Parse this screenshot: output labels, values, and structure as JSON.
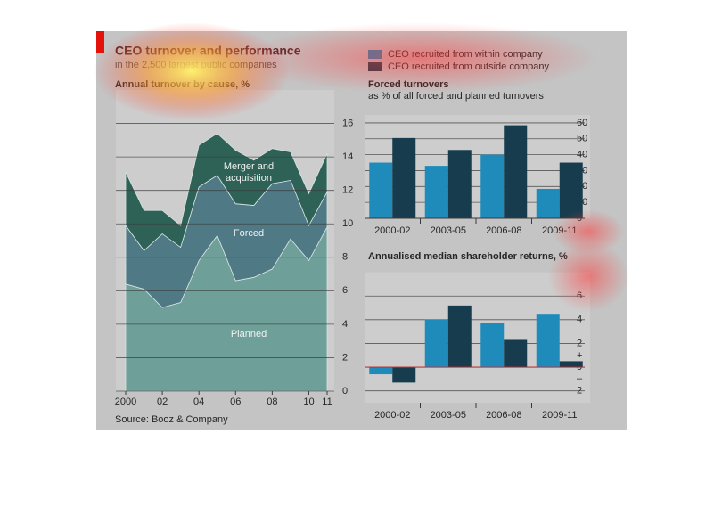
{
  "title": "CEO turnover and performance",
  "subtitle": "in the 2,500 largest public companies",
  "source": "Source: Booz & Company",
  "chart_data": [
    {
      "type": "area",
      "stacked": true,
      "title": "Annual turnover by cause, %",
      "x": [
        2000,
        2001,
        2002,
        2003,
        2004,
        2005,
        2006,
        2007,
        2008,
        2009,
        2010,
        2011
      ],
      "series": [
        {
          "name": "Planned",
          "color": "#6f9f99",
          "values": [
            6.4,
            6.1,
            5.0,
            5.3,
            7.8,
            9.3,
            6.6,
            6.8,
            7.3,
            9.1,
            7.8,
            9.8
          ]
        },
        {
          "name": "Forced",
          "color": "#4f7985",
          "values": [
            3.5,
            2.3,
            4.4,
            3.3,
            4.4,
            3.6,
            4.6,
            4.3,
            5.1,
            3.5,
            2.1,
            2.1
          ]
        },
        {
          "name": "Merger and acquisition",
          "color": "#2f6256",
          "values": [
            3.2,
            2.4,
            1.4,
            1.3,
            2.5,
            2.5,
            3.2,
            2.7,
            2.1,
            1.7,
            1.9,
            2.3
          ]
        }
      ],
      "xlim": [
        2000,
        2011
      ],
      "xticks": [
        2000,
        {
          "value": 2002,
          "label": "02"
        },
        {
          "value": 2004,
          "label": "04"
        },
        {
          "value": 2006,
          "label": "06"
        },
        {
          "value": 2008,
          "label": "08"
        },
        {
          "value": 2010,
          "label": "10"
        },
        {
          "value": 2011,
          "label": "11"
        }
      ],
      "ylim": [
        0,
        18
      ],
      "yticks": [
        0,
        2,
        4,
        6,
        8,
        10,
        12,
        14,
        16
      ],
      "grid": true
    },
    {
      "type": "bar",
      "title": "Forced turnovers",
      "subtitle": "as % of all forced and planned turnovers",
      "categories": [
        "2000-02",
        "2003-05",
        "2006-08",
        "2009-11"
      ],
      "series": [
        {
          "name": "CEO recruited from within company",
          "color": "#1f8bbb",
          "values": [
            35,
            33,
            40,
            18.5
          ]
        },
        {
          "name": "CEO recruited from outside company",
          "color": "#163c4e",
          "values": [
            50.5,
            43,
            58.5,
            35
          ]
        }
      ],
      "ylim": [
        0,
        65
      ],
      "yticks": [
        0,
        10,
        20,
        30,
        40,
        50,
        60
      ],
      "grid": true
    },
    {
      "type": "bar",
      "title": "Annualised median shareholder returns, %",
      "categories": [
        "2000-02",
        "2003-05",
        "2006-08",
        "2009-11"
      ],
      "series": [
        {
          "name": "CEO recruited from within company",
          "color": "#1f8bbb",
          "values": [
            -0.6,
            4.0,
            3.7,
            4.5
          ]
        },
        {
          "name": "CEO recruited from outside company",
          "color": "#163c4e",
          "values": [
            -1.3,
            5.2,
            2.3,
            0.5
          ]
        }
      ],
      "ylim": [
        -3,
        8
      ],
      "yticks": [
        {
          "value": -2,
          "label": "2"
        },
        0,
        2,
        4,
        6
      ],
      "axis_signs": [
        "+",
        "–"
      ],
      "grid": true
    }
  ]
}
